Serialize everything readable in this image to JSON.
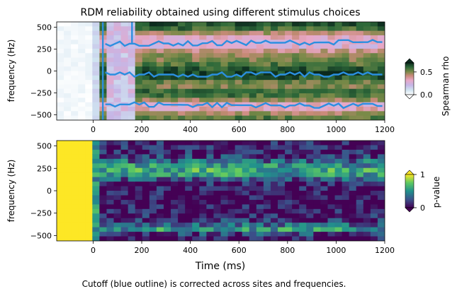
{
  "figure": {
    "caption": "Cutoff (blue outline) is corrected across sites and frequencies.",
    "xlabel": "Time (ms)"
  },
  "chart_data": [
    {
      "type": "heatmap",
      "title": "RDM reliability obtained using different stimulus choices",
      "xlabel": "",
      "ylabel": "frequency (Hz)",
      "xlim": [
        -150,
        1200
      ],
      "ylim": [
        -560,
        560
      ],
      "xticks": [
        0,
        200,
        400,
        600,
        800,
        1000,
        1200
      ],
      "yticks": [
        500,
        250,
        0,
        -250,
        -500
      ],
      "colormap": [
        "#ffffff",
        "#cfe3f0",
        "#c6b6e6",
        "#e8a8c8",
        "#c98a78",
        "#7a8a48",
        "#2f6a3a",
        "#0b2a1e"
      ],
      "colorbar": {
        "label": "Spearman rho",
        "ticks": [
          0.0,
          0.5
        ],
        "range": [
          0,
          0.7
        ],
        "extend": "both"
      },
      "cutoff_outline_color": "#2b8fe0",
      "band_profile_rho": [
        {
          "freq": 560,
          "rho": 0.66
        },
        {
          "freq": 480,
          "rho": 0.58
        },
        {
          "freq": 400,
          "rho": 0.33
        },
        {
          "freq": 300,
          "rho": 0.22
        },
        {
          "freq": 200,
          "rho": 0.46
        },
        {
          "freq": 120,
          "rho": 0.5
        },
        {
          "freq": 40,
          "rho": 0.6
        },
        {
          "freq": -20,
          "rho": 0.68
        },
        {
          "freq": -80,
          "rho": 0.62
        },
        {
          "freq": -160,
          "rho": 0.46
        },
        {
          "freq": -250,
          "rho": 0.62
        },
        {
          "freq": -320,
          "rho": 0.5
        },
        {
          "freq": -400,
          "rho": 0.22
        },
        {
          "freq": -470,
          "rho": 0.42
        },
        {
          "freq": -560,
          "rho": 0.6
        }
      ]
    },
    {
      "type": "heatmap",
      "title": "",
      "xlabel": "Time (ms)",
      "ylabel": "frequency (Hz)",
      "xlim": [
        -150,
        1200
      ],
      "ylim": [
        -560,
        560
      ],
      "xticks": [
        0,
        200,
        400,
        600,
        800,
        1000,
        1200
      ],
      "yticks": [
        500,
        250,
        0,
        -250,
        -500
      ],
      "colormap": [
        "#440154",
        "#3b528b",
        "#21918c",
        "#5ec962",
        "#fde725"
      ],
      "colorbar": {
        "label": "p-value",
        "ticks": [
          0,
          1
        ],
        "range": [
          0,
          1
        ],
        "extend": "both"
      },
      "band_profile_p": [
        {
          "freq": 560,
          "p": 0.05
        },
        {
          "freq": 400,
          "p": 0.1
        },
        {
          "freq": 300,
          "p": 0.45
        },
        {
          "freq": 200,
          "p": 0.65
        },
        {
          "freq": 100,
          "p": 0.1
        },
        {
          "freq": 0,
          "p": 0.02
        },
        {
          "freq": -100,
          "p": 0.02
        },
        {
          "freq": -250,
          "p": 0.02
        },
        {
          "freq": -350,
          "p": 0.15
        },
        {
          "freq": -420,
          "p": 0.6
        },
        {
          "freq": -500,
          "p": 0.08
        },
        {
          "freq": -560,
          "p": 0.02
        }
      ]
    }
  ]
}
